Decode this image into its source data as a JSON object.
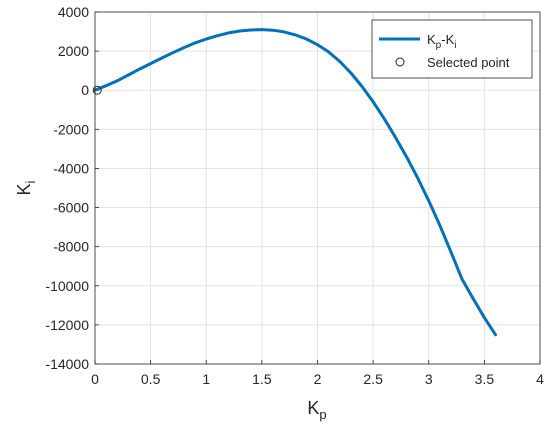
{
  "chart_data": {
    "type": "line",
    "xlabel": {
      "main": "K",
      "sub": "p"
    },
    "ylabel": {
      "main": "K",
      "sub": "i"
    },
    "xlim": [
      0,
      4
    ],
    "ylim": [
      -14000,
      4000
    ],
    "xticks": [
      0,
      0.5,
      1,
      1.5,
      2,
      2.5,
      3,
      3.5,
      4
    ],
    "xtick_labels": [
      "0",
      "0.5",
      "1",
      "1.5",
      "2",
      "2.5",
      "3",
      "3.5",
      "4"
    ],
    "yticks": [
      -14000,
      -12000,
      -10000,
      -8000,
      -6000,
      -4000,
      -2000,
      0,
      2000,
      4000
    ],
    "ytick_labels": [
      "-14000",
      "-12000",
      "-10000",
      "-8000",
      "-6000",
      "-4000",
      "-2000",
      "0",
      "2000",
      "4000"
    ],
    "grid": true,
    "legend_placement": "top-right",
    "series": [
      {
        "name_parts": {
          "a": "K",
          "a_sub": "p",
          "sep": "-",
          "b": "K",
          "b_sub": "i"
        },
        "color": "#0072BD",
        "x": [
          0.0,
          0.1,
          0.2,
          0.3,
          0.4,
          0.5,
          0.6,
          0.7,
          0.8,
          0.9,
          1.0,
          1.1,
          1.2,
          1.3,
          1.4,
          1.5,
          1.6,
          1.7,
          1.8,
          1.9,
          2.0,
          2.1,
          2.2,
          2.3,
          2.4,
          2.5,
          2.6,
          2.7,
          2.8,
          2.9,
          3.0,
          3.1,
          3.2,
          3.3,
          3.4,
          3.5,
          3.6
        ],
        "y": [
          0,
          230,
          480,
          780,
          1080,
          1360,
          1650,
          1920,
          2180,
          2420,
          2620,
          2790,
          2930,
          3030,
          3080,
          3100,
          3070,
          2980,
          2830,
          2620,
          2330,
          1960,
          1470,
          880,
          190,
          -590,
          -1460,
          -2400,
          -3400,
          -4480,
          -5660,
          -6920,
          -8280,
          -9670,
          -10670,
          -11630,
          -12500
        ]
      }
    ],
    "selected_point": {
      "label": "Selected point",
      "x": 0.02,
      "y": 0
    }
  }
}
